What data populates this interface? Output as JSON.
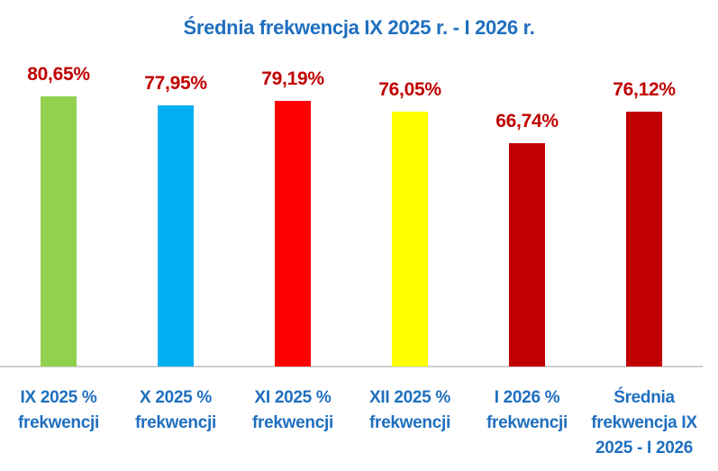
{
  "chart_data": {
    "type": "bar",
    "title": "Średnia frekwencja IX 2025 r. - I 2026 r.",
    "xlabel": "",
    "ylabel": "",
    "ylim": [
      0,
      82
    ],
    "grid": false,
    "legend": null,
    "categories": [
      "IX 2025 % frekwencji",
      "X 2025 % frekwencji",
      "XI 2025 % frekwencji",
      "XII 2025 % frekwencji",
      "I 2026 % frekwencji",
      "Średnia frekwencja IX 2025 - I 2026"
    ],
    "values": [
      80.65,
      77.95,
      79.19,
      76.05,
      66.74,
      76.12
    ],
    "value_labels": [
      "80,65%",
      "77,95%",
      "79,19%",
      "76,05%",
      "66,74%",
      "76,12%"
    ],
    "bar_colors": [
      "#92D050",
      "#00B0F0",
      "#FF0000",
      "#FFFF00",
      "#C00000",
      "#C00000"
    ]
  },
  "colors": {
    "title": "#1F6FBF",
    "value_label": "#C00000",
    "category_label": "#1F6FBF",
    "axis": "#D0D0D0"
  },
  "category_lines": [
    [
      "IX 2025 %",
      "frekwencji"
    ],
    [
      "X 2025 %",
      "frekwencji"
    ],
    [
      "XI 2025 %",
      "frekwencji"
    ],
    [
      "XII 2025 %",
      "frekwencji"
    ],
    [
      "I 2026 %",
      "frekwencji"
    ],
    [
      "Średnia",
      "frekwencja IX",
      "2025 - I 2026"
    ]
  ]
}
